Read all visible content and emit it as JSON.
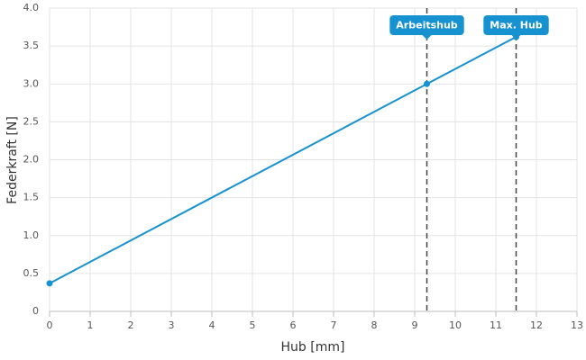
{
  "chart_data": {
    "type": "line",
    "xlabel": "Hub [mm]",
    "ylabel": "Federkraft [N]",
    "x": [
      0,
      9.3,
      11.5
    ],
    "values": [
      0.37,
      3.0,
      3.62
    ],
    "color": "#1592cf",
    "xlim": [
      0,
      13
    ],
    "xticks": [
      0,
      1,
      2,
      3,
      4,
      5,
      6,
      7,
      8,
      9,
      10,
      11,
      12,
      13
    ],
    "ylim": [
      0,
      4
    ],
    "yticks": [
      0,
      0.5,
      {
        "value": 1,
        "label": "1.0"
      },
      1.5,
      {
        "value": 2,
        "label": "2.0"
      },
      2.5,
      {
        "value": 3,
        "label": "3.0"
      },
      3.5,
      {
        "value": 4,
        "label": "4.0"
      }
    ],
    "grid": true,
    "annotations": [
      {
        "x": 9.3,
        "label": "Arbeitshub"
      },
      {
        "x": 11.5,
        "label": "Max. Hub"
      }
    ]
  }
}
